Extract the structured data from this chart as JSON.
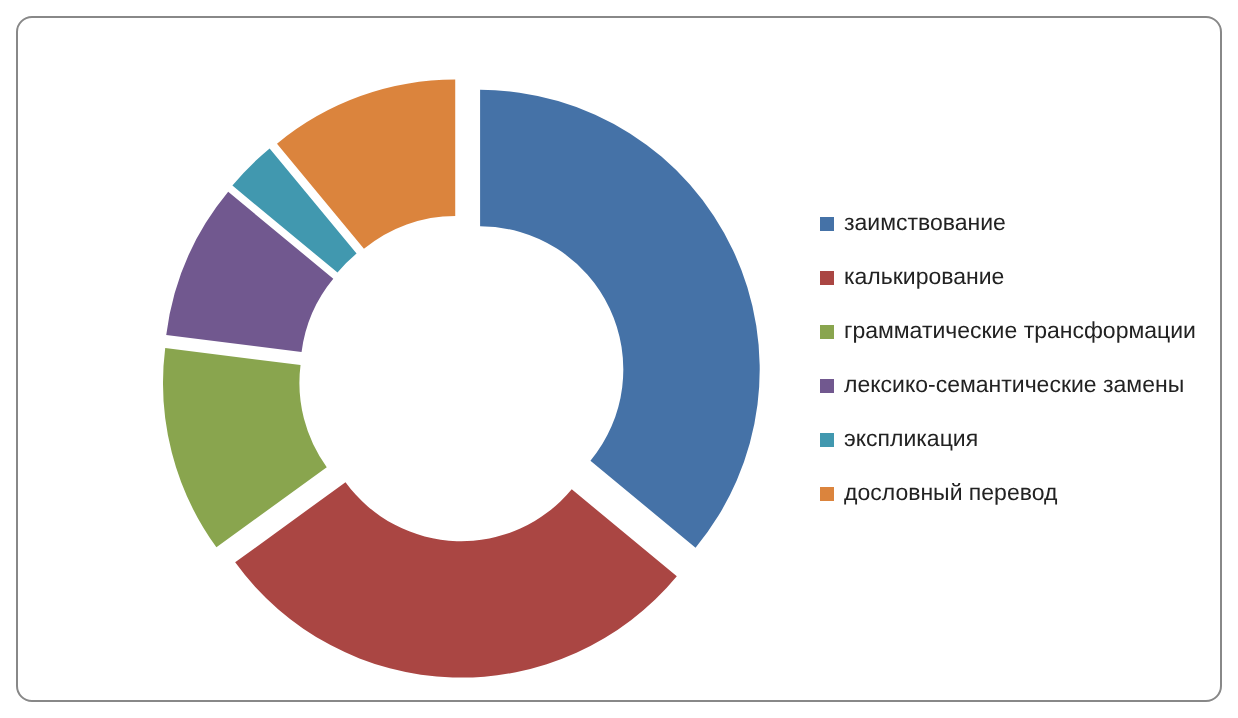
{
  "chart_data": {
    "type": "donut",
    "categories": [
      "заимствование",
      "калькирование",
      "грамматические трансформации",
      "лексико-семантические замены",
      "экспликация",
      "дословный перевод"
    ],
    "values": [
      36,
      29,
      12,
      9,
      3,
      11
    ],
    "colors": [
      "#4572a7",
      "#aa4643",
      "#89a54e",
      "#71588f",
      "#4198af",
      "#db843d"
    ],
    "legend": "right"
  }
}
